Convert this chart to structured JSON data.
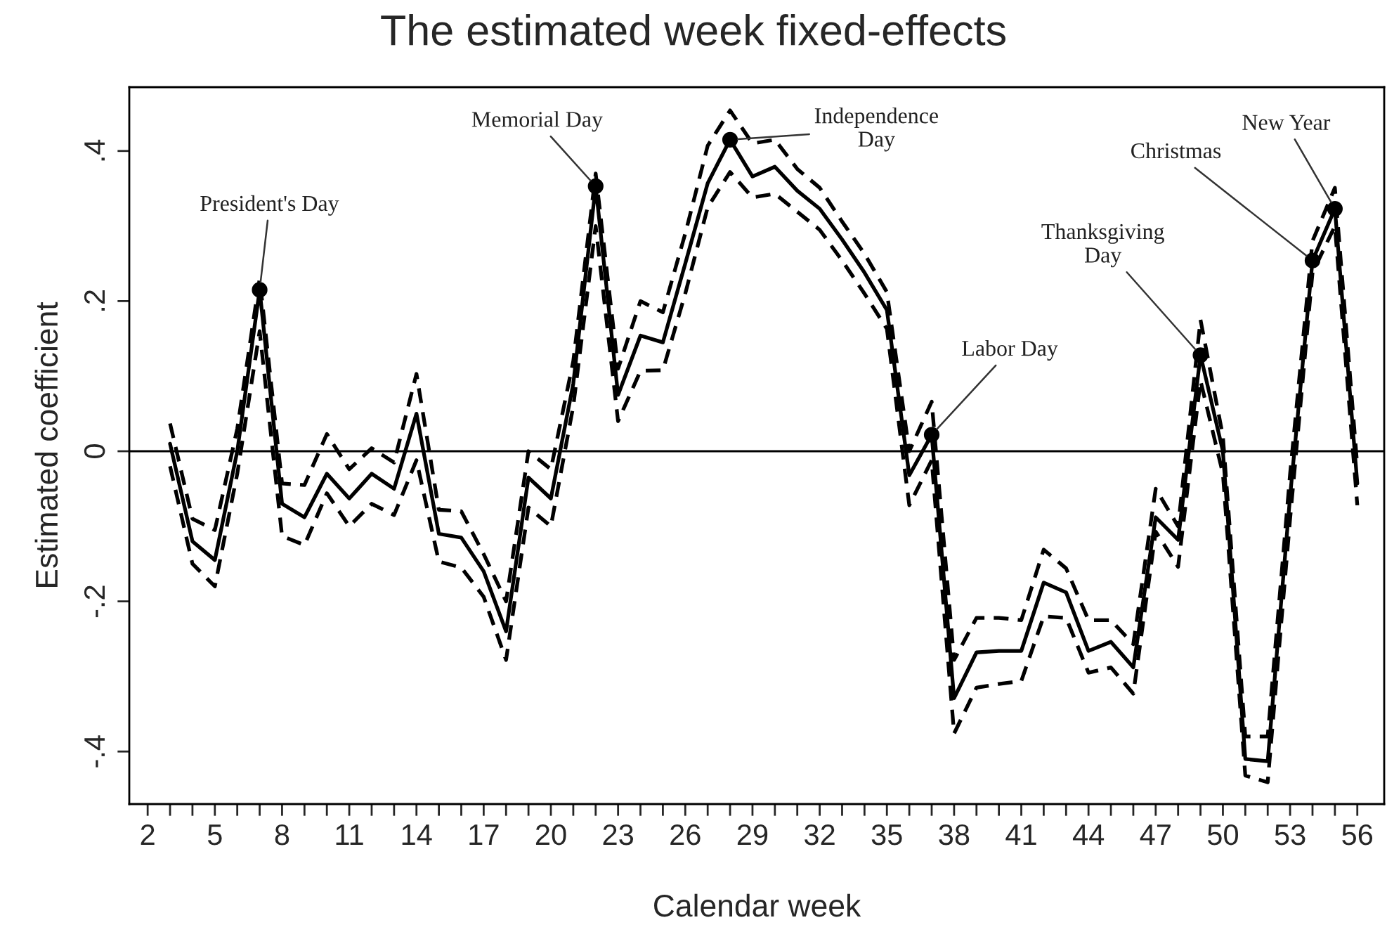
{
  "chart_data": {
    "type": "line",
    "title": "The estimated week fixed-effects",
    "xlabel": "Calendar week",
    "ylabel": "Estimated coefficient",
    "x": [
      3,
      4,
      5,
      6,
      7,
      8,
      9,
      10,
      11,
      12,
      13,
      14,
      15,
      16,
      17,
      18,
      19,
      20,
      21,
      22,
      23,
      24,
      25,
      26,
      27,
      28,
      29,
      30,
      31,
      32,
      33,
      34,
      35,
      36,
      37,
      38,
      39,
      40,
      41,
      42,
      43,
      44,
      45,
      46,
      47,
      48,
      49,
      50,
      51,
      52,
      53,
      54,
      55,
      56
    ],
    "series": [
      {
        "line_style": "solid",
        "marker": "none",
        "color": "#000000",
        "values": [
          0.01,
          -0.12,
          -0.145,
          0.0,
          0.215,
          -0.07,
          -0.088,
          -0.03,
          -0.063,
          -0.03,
          -0.05,
          0.05,
          -0.11,
          -0.115,
          -0.16,
          -0.24,
          -0.035,
          -0.063,
          0.09,
          0.353,
          0.075,
          0.154,
          0.145,
          0.25,
          0.357,
          0.415,
          0.366,
          0.379,
          0.347,
          0.323,
          0.282,
          0.238,
          0.188,
          -0.032,
          0.022,
          -0.329,
          -0.268,
          -0.266,
          -0.266,
          -0.175,
          -0.188,
          -0.266,
          -0.254,
          -0.288,
          -0.088,
          -0.118,
          0.128,
          0.0,
          -0.41,
          -0.413,
          -0.06,
          0.254,
          0.323,
          -0.043
        ]
      },
      {
        "line_style": "dashed",
        "marker": "none",
        "color": "#000000",
        "values": [
          0.037,
          -0.09,
          -0.105,
          0.03,
          0.23,
          -0.043,
          -0.045,
          0.023,
          -0.024,
          0.004,
          -0.015,
          0.103,
          -0.078,
          -0.08,
          -0.137,
          -0.2,
          0.0,
          -0.024,
          0.12,
          0.37,
          0.11,
          0.2,
          0.185,
          0.29,
          0.407,
          0.454,
          0.41,
          0.415,
          0.376,
          0.351,
          0.306,
          0.263,
          0.212,
          0.0,
          0.066,
          -0.278,
          -0.222,
          -0.222,
          -0.225,
          -0.131,
          -0.156,
          -0.225,
          -0.225,
          -0.257,
          -0.05,
          -0.1,
          0.175,
          0.02,
          -0.38,
          -0.38,
          -0.03,
          0.28,
          0.351,
          -0.02
        ]
      },
      {
        "line_style": "dashed",
        "marker": "none",
        "color": "#000000",
        "values": [
          -0.02,
          -0.15,
          -0.18,
          -0.03,
          0.16,
          -0.113,
          -0.125,
          -0.056,
          -0.1,
          -0.07,
          -0.085,
          -0.012,
          -0.147,
          -0.155,
          -0.194,
          -0.278,
          -0.075,
          -0.1,
          0.06,
          0.3,
          0.04,
          0.107,
          0.108,
          0.21,
          0.325,
          0.372,
          0.338,
          0.343,
          0.319,
          0.295,
          0.254,
          0.21,
          0.163,
          -0.072,
          -0.012,
          -0.376,
          -0.315,
          -0.31,
          -0.306,
          -0.22,
          -0.222,
          -0.295,
          -0.288,
          -0.323,
          -0.107,
          -0.154,
          0.094,
          -0.03,
          -0.432,
          -0.441,
          -0.09,
          0.238,
          0.3,
          -0.072
        ]
      },
      {
        "type": "scatter",
        "marker": "circle",
        "color": "#000000",
        "x": [
          7,
          22,
          28,
          37,
          49,
          54,
          55
        ],
        "values": [
          0.215,
          0.353,
          0.415,
          0.022,
          0.128,
          0.254,
          0.323
        ]
      }
    ],
    "annotations": [
      {
        "text": "President's Day",
        "x": 7,
        "y": 0.215
      },
      {
        "text": "Memorial Day",
        "x": 22,
        "y": 0.353
      },
      {
        "text": "Independence\nDay",
        "x": 28,
        "y": 0.415
      },
      {
        "text": "Labor Day",
        "x": 37,
        "y": 0.022
      },
      {
        "text": "Thanksgiving\nDay",
        "x": 49,
        "y": 0.128
      },
      {
        "text": "Christmas",
        "x": 54,
        "y": 0.254
      },
      {
        "text": "New Year",
        "x": 55,
        "y": 0.323
      }
    ],
    "ref_lines": [
      {
        "axis": "y",
        "value": 0,
        "color": "#000000",
        "line_style": "solid"
      }
    ],
    "xlim": [
      1.18,
      57.2
    ],
    "ylim": [
      -0.47,
      0.485
    ],
    "xticks": [
      2,
      {
        "value": 3,
        "label": null
      },
      {
        "value": 4,
        "label": null
      },
      5,
      {
        "value": 6,
        "label": null
      },
      {
        "value": 7,
        "label": null
      },
      8,
      {
        "value": 9,
        "label": null
      },
      {
        "value": 10,
        "label": null
      },
      11,
      {
        "value": 12,
        "label": null
      },
      {
        "value": 13,
        "label": null
      },
      14,
      {
        "value": 15,
        "label": null
      },
      {
        "value": 16,
        "label": null
      },
      17,
      {
        "value": 18,
        "label": null
      },
      {
        "value": 19,
        "label": null
      },
      20,
      {
        "value": 21,
        "label": null
      },
      {
        "value": 22,
        "label": null
      },
      23,
      {
        "value": 24,
        "label": null
      },
      {
        "value": 25,
        "label": null
      },
      26,
      {
        "value": 27,
        "label": null
      },
      {
        "value": 28,
        "label": null
      },
      29,
      {
        "value": 30,
        "label": null
      },
      {
        "value": 31,
        "label": null
      },
      32,
      {
        "value": 33,
        "label": null
      },
      {
        "value": 34,
        "label": null
      },
      35,
      {
        "value": 36,
        "label": null
      },
      {
        "value": 37,
        "label": null
      },
      38,
      {
        "value": 39,
        "label": null
      },
      {
        "value": 40,
        "label": null
      },
      41,
      {
        "value": 42,
        "label": null
      },
      {
        "value": 43,
        "label": null
      },
      44,
      {
        "value": 45,
        "label": null
      },
      {
        "value": 46,
        "label": null
      },
      47,
      {
        "value": 48,
        "label": null
      },
      {
        "value": 49,
        "label": null
      },
      50,
      {
        "value": 51,
        "label": null
      },
      {
        "value": 52,
        "label": null
      },
      53,
      {
        "value": 54,
        "label": null
      },
      {
        "value": 55,
        "label": null
      },
      56
    ],
    "yticks": [
      {
        "value": -0.4,
        "label": "-.4"
      },
      {
        "value": -0.2,
        "label": "-.2"
      },
      0,
      {
        "value": 0.2,
        "label": ".2"
      },
      {
        "value": 0.4,
        "label": ".4"
      }
    ],
    "grid": false,
    "legend": false
  }
}
